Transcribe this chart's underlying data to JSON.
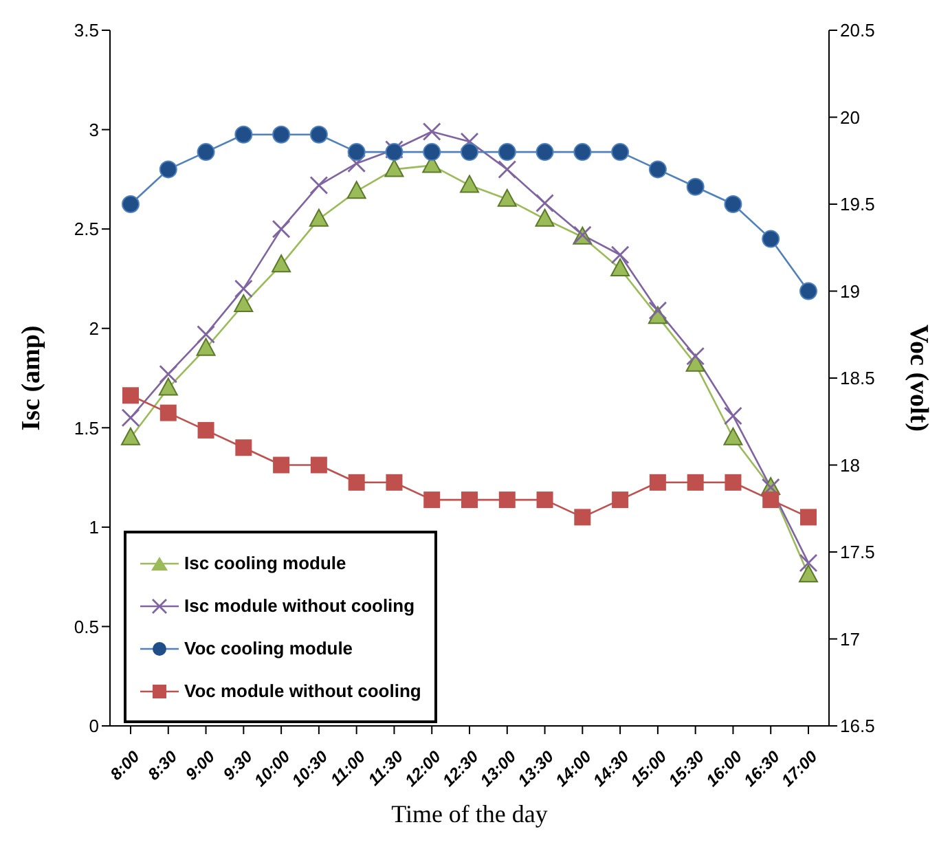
{
  "chart_data": {
    "type": "line",
    "xlabel": "Time of the day",
    "ylabel": "Isc (amp)",
    "y2label": "Voc (volt)",
    "categories": [
      "8:00",
      "8:30",
      "9:00",
      "9:30",
      "10:00",
      "10:30",
      "11:00",
      "11:30",
      "12:00",
      "12:30",
      "13:00",
      "13:30",
      "14:00",
      "14:30",
      "15:00",
      "15:30",
      "16:00",
      "16:30",
      "17:00"
    ],
    "series": [
      {
        "name": "Isc  cooling module",
        "color": "#9bbb59",
        "marker": "triangle",
        "values": [
          1.45,
          1.7,
          1.9,
          2.12,
          2.32,
          2.55,
          2.69,
          2.8,
          2.82,
          2.72,
          2.65,
          2.55,
          2.46,
          2.3,
          2.06,
          1.82,
          1.45,
          1.2,
          0.76
        ]
      },
      {
        "name": "Isc  module without cooling",
        "color": "#8064a2",
        "marker": "cross",
        "values": [
          1.55,
          1.77,
          1.97,
          2.2,
          2.5,
          2.72,
          2.83,
          2.9,
          2.99,
          2.94,
          2.8,
          2.63,
          2.47,
          2.37,
          2.09,
          1.86,
          1.56,
          1.2,
          0.82
        ]
      },
      {
        "name": "Voc  cooling module",
        "color": "#4f81bd",
        "marker": "circle",
        "axis": "y2",
        "values": [
          19.5,
          19.7,
          19.8,
          19.9,
          19.9,
          19.9,
          19.8,
          19.8,
          19.8,
          19.8,
          19.8,
          19.8,
          19.8,
          19.8,
          19.7,
          19.6,
          19.5,
          19.3,
          19.0
        ]
      },
      {
        "name": "Voc  module without cooling",
        "color": "#c0504d",
        "marker": "square",
        "axis": "y2",
        "values": [
          18.4,
          18.3,
          18.2,
          18.1,
          18.0,
          18.0,
          17.9,
          17.9,
          17.8,
          17.8,
          17.8,
          17.8,
          17.7,
          17.8,
          17.9,
          17.9,
          17.9,
          17.8,
          17.7
        ]
      }
    ],
    "ylim": [
      0,
      3.5
    ],
    "yticks": [
      0,
      0.5,
      1,
      1.5,
      2,
      2.5,
      3,
      3.5
    ],
    "y2lim": [
      16.5,
      20.5
    ],
    "y2ticks": [
      16.5,
      17,
      17.5,
      18,
      18.5,
      19,
      19.5,
      20,
      20.5
    ],
    "grid": false,
    "legend": "bottom left"
  }
}
